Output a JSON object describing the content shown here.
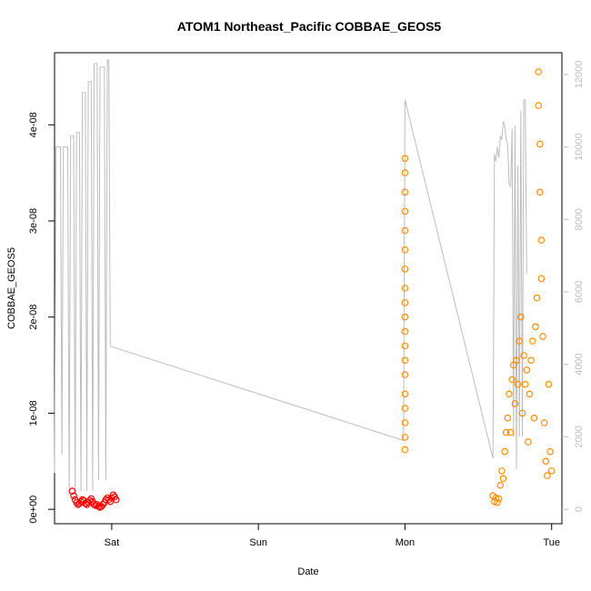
{
  "chart_data": {
    "type": "scatter",
    "title": "ATOM1 Northeast_Pacific COBBAE_GEOS5",
    "xlabel": "Date",
    "ylabel": "COBBAE_GEOS5",
    "x_ticks": [
      "Sat",
      "Sun",
      "Mon",
      "Tue"
    ],
    "x_tick_positions": [
      2.0,
      3.0,
      4.0,
      5.0
    ],
    "xlim": [
      1.61,
      5.07
    ],
    "y_ticks": [
      "0e+00",
      "1e-08",
      "2e-08",
      "3e-08",
      "4e-08"
    ],
    "y_tick_values": [
      0,
      1e-08,
      2e-08,
      3e-08,
      4e-08
    ],
    "ylim": [
      -1.5e-09,
      4.75e-08
    ],
    "y2_ticks": [
      "0",
      "2000",
      "4000",
      "6000",
      "8000",
      "10000",
      "12000"
    ],
    "y2_tick_values": [
      0,
      2000,
      4000,
      6000,
      8000,
      10000,
      12000
    ],
    "y2lim": [
      -400,
      12600
    ],
    "colors": {
      "red": "#ff0000",
      "orange": "#ff8c00",
      "altitude": "#bdbdbd",
      "axis": "#000000",
      "right_axis": "#bdbdbd"
    },
    "series": [
      {
        "color": "red",
        "points": [
          [
            1.73,
            1.9e-09
          ],
          [
            1.74,
            1.4e-09
          ],
          [
            1.75,
            1e-09
          ],
          [
            1.76,
            7e-10
          ],
          [
            1.77,
            5e-10
          ],
          [
            1.78,
            6e-10
          ],
          [
            1.79,
            8e-10
          ],
          [
            1.8,
            1e-09
          ],
          [
            1.81,
            9e-10
          ],
          [
            1.82,
            6e-10
          ],
          [
            1.83,
            5e-10
          ],
          [
            1.84,
            7e-10
          ],
          [
            1.85,
            9e-10
          ],
          [
            1.86,
            1.1e-09
          ],
          [
            1.87,
            8e-10
          ],
          [
            1.88,
            5e-10
          ],
          [
            1.89,
            4e-10
          ],
          [
            1.9,
            5e-10
          ],
          [
            1.91,
            3e-10
          ],
          [
            1.92,
            2e-10
          ],
          [
            1.93,
            3e-10
          ],
          [
            1.94,
            5e-10
          ],
          [
            1.95,
            7e-10
          ],
          [
            1.96,
            1e-09
          ],
          [
            1.97,
            1.2e-09
          ],
          [
            1.98,
            1e-09
          ],
          [
            1.99,
            8e-10
          ],
          [
            2.0,
            1.2e-09
          ],
          [
            2.01,
            1.5e-09
          ],
          [
            2.02,
            1.3e-09
          ],
          [
            2.03,
            1e-09
          ]
        ]
      },
      {
        "color": "orange",
        "points": [
          [
            4.0,
            6.2e-09
          ],
          [
            4.0,
            7.5e-09
          ],
          [
            4.0,
            9e-09
          ],
          [
            4.0,
            1.05e-08
          ],
          [
            4.0,
            1.2e-08
          ],
          [
            4.0,
            1.4e-08
          ],
          [
            4.0,
            1.55e-08
          ],
          [
            4.0,
            1.7e-08
          ],
          [
            4.0,
            1.85e-08
          ],
          [
            4.0,
            2e-08
          ],
          [
            4.0,
            2.15e-08
          ],
          [
            4.0,
            2.3e-08
          ],
          [
            4.0,
            2.5e-08
          ],
          [
            4.0,
            2.7e-08
          ],
          [
            4.0,
            2.9e-08
          ],
          [
            4.0,
            3.1e-08
          ],
          [
            4.0,
            3.3e-08
          ],
          [
            4.0,
            3.5e-08
          ],
          [
            4.0,
            3.65e-08
          ],
          [
            4.6,
            1.4e-09
          ],
          [
            4.61,
            8e-10
          ],
          [
            4.62,
            1.2e-09
          ],
          [
            4.63,
            7e-10
          ],
          [
            4.64,
            1.1e-09
          ],
          [
            4.65,
            2.5e-09
          ],
          [
            4.66,
            4e-09
          ],
          [
            4.67,
            3.2e-09
          ],
          [
            4.68,
            6e-09
          ],
          [
            4.69,
            8e-09
          ],
          [
            4.7,
            9.5e-09
          ],
          [
            4.71,
            1.2e-08
          ],
          [
            4.72,
            8e-09
          ],
          [
            4.73,
            1.35e-08
          ],
          [
            4.74,
            1.5e-08
          ],
          [
            4.75,
            1.1e-08
          ],
          [
            4.76,
            1.55e-08
          ],
          [
            4.77,
            1.3e-08
          ],
          [
            4.78,
            1.75e-08
          ],
          [
            4.79,
            2e-08
          ],
          [
            4.8,
            1e-08
          ],
          [
            4.81,
            1.6e-08
          ],
          [
            4.82,
            1.3e-08
          ],
          [
            4.83,
            1.45e-08
          ],
          [
            4.84,
            7e-09
          ],
          [
            4.85,
            1.2e-08
          ],
          [
            4.86,
            1.55e-08
          ],
          [
            4.87,
            1.75e-08
          ],
          [
            4.88,
            9.5e-09
          ],
          [
            4.89,
            1.9e-08
          ],
          [
            4.9,
            2.2e-08
          ],
          [
            4.91,
            4.2e-08
          ],
          [
            4.91,
            4.55e-08
          ],
          [
            4.92,
            3.8e-08
          ],
          [
            4.92,
            3.3e-08
          ],
          [
            4.93,
            2.8e-08
          ],
          [
            4.93,
            2.4e-08
          ],
          [
            4.94,
            1.8e-08
          ],
          [
            4.95,
            9e-09
          ],
          [
            4.96,
            5e-09
          ],
          [
            4.97,
            3.5e-09
          ],
          [
            4.98,
            1.3e-08
          ],
          [
            4.99,
            6e-09
          ],
          [
            5.0,
            4e-09
          ]
        ]
      }
    ],
    "altitude_line": [
      [
        1.61,
        1000
      ],
      [
        1.62,
        10000
      ],
      [
        1.65,
        10000
      ],
      [
        1.66,
        1500
      ],
      [
        1.67,
        10000
      ],
      [
        1.7,
        10000
      ],
      [
        1.71,
        400
      ],
      [
        1.72,
        10300
      ],
      [
        1.74,
        10300
      ],
      [
        1.75,
        400
      ],
      [
        1.76,
        10400
      ],
      [
        1.78,
        10400
      ],
      [
        1.79,
        500
      ],
      [
        1.8,
        11500
      ],
      [
        1.82,
        11500
      ],
      [
        1.83,
        500
      ],
      [
        1.84,
        11800
      ],
      [
        1.86,
        11800
      ],
      [
        1.87,
        500
      ],
      [
        1.88,
        12300
      ],
      [
        1.9,
        12300
      ],
      [
        1.91,
        800
      ],
      [
        1.92,
        12200
      ],
      [
        1.95,
        12200
      ],
      [
        1.96,
        800
      ],
      [
        1.97,
        12400
      ],
      [
        1.98,
        12400
      ],
      [
        1.99,
        4500
      ],
      [
        3.99,
        1900
      ],
      [
        4.0,
        11300
      ],
      [
        4.6,
        1400
      ],
      [
        4.61,
        9800
      ],
      [
        4.62,
        9600
      ],
      [
        4.63,
        10000
      ],
      [
        4.64,
        9700
      ],
      [
        4.65,
        10300
      ],
      [
        4.66,
        10200
      ],
      [
        4.67,
        10700
      ],
      [
        4.68,
        10600
      ],
      [
        4.69,
        10200
      ],
      [
        4.7,
        10100
      ],
      [
        4.71,
        9000
      ],
      [
        4.72,
        8900
      ],
      [
        4.73,
        10500
      ],
      [
        4.74,
        2000
      ],
      [
        4.75,
        10600
      ],
      [
        4.76,
        1100
      ],
      [
        4.77,
        9500
      ],
      [
        4.78,
        2000
      ],
      [
        4.79,
        11000
      ],
      [
        4.8,
        2000
      ],
      [
        4.81,
        11300
      ],
      [
        4.82,
        11300
      ],
      [
        4.83,
        6500
      ]
    ]
  }
}
